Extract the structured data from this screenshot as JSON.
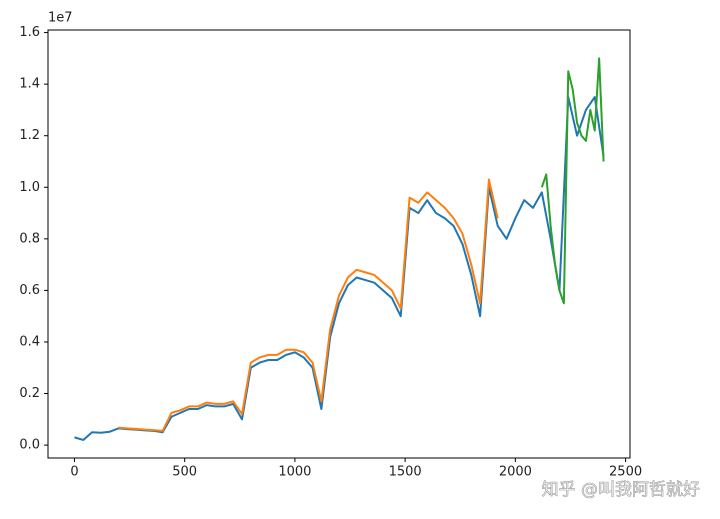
{
  "chart_data": {
    "type": "line",
    "y_offset_label": "1e7",
    "watermark": "知乎 @叫我阿哲就好",
    "xlim": [
      -120,
      2520
    ],
    "ylim": [
      -0.05,
      1.61
    ],
    "xticks": [
      0,
      500,
      1000,
      1500,
      2000,
      2500
    ],
    "yticks": [
      {
        "value": 0,
        "label": "0.0"
      },
      {
        "value": 0.2,
        "label": "0.2"
      },
      {
        "value": 0.4,
        "label": "0.4"
      },
      {
        "value": 0.6,
        "label": "0.6"
      },
      {
        "value": 0.8,
        "label": "0.8"
      },
      {
        "value": 1.0,
        "label": "1.0"
      },
      {
        "value": 1.2,
        "label": "1.2"
      },
      {
        "value": 1.4,
        "label": "1.4"
      },
      {
        "value": 1.6,
        "label": "1.6"
      }
    ],
    "series": [
      {
        "color": "#1f77b4",
        "x": [
          0,
          40,
          80,
          120,
          160,
          200,
          240,
          280,
          320,
          360,
          400,
          440,
          480,
          520,
          560,
          600,
          640,
          680,
          720,
          760,
          800,
          840,
          880,
          920,
          960,
          1000,
          1040,
          1080,
          1120,
          1160,
          1200,
          1240,
          1280,
          1320,
          1360,
          1400,
          1440,
          1480,
          1520,
          1560,
          1600,
          1640,
          1680,
          1720,
          1760,
          1800,
          1840,
          1880,
          1920,
          1960,
          2000,
          2040,
          2080,
          2120,
          2160,
          2200,
          2240,
          2280,
          2320,
          2360,
          2400
        ],
        "values": [
          0.03,
          0.02,
          0.05,
          0.048,
          0.052,
          0.065,
          0.062,
          0.06,
          0.057,
          0.055,
          0.05,
          0.11,
          0.125,
          0.14,
          0.14,
          0.155,
          0.15,
          0.15,
          0.16,
          0.1,
          0.3,
          0.32,
          0.33,
          0.33,
          0.35,
          0.36,
          0.34,
          0.3,
          0.14,
          0.42,
          0.55,
          0.62,
          0.65,
          0.64,
          0.63,
          0.6,
          0.57,
          0.5,
          0.92,
          0.9,
          0.95,
          0.9,
          0.88,
          0.85,
          0.78,
          0.66,
          0.5,
          1.0,
          0.85,
          0.8,
          0.88,
          0.95,
          0.92,
          0.98,
          0.8,
          0.6,
          1.35,
          1.2,
          1.3,
          1.35,
          1.12
        ]
      },
      {
        "color": "#ff7f0e",
        "x": [
          200,
          240,
          280,
          320,
          360,
          400,
          440,
          480,
          520,
          560,
          600,
          640,
          680,
          720,
          760,
          800,
          840,
          880,
          920,
          960,
          1000,
          1040,
          1080,
          1120,
          1160,
          1200,
          1240,
          1280,
          1320,
          1360,
          1400,
          1440,
          1480,
          1520,
          1560,
          1600,
          1640,
          1680,
          1720,
          1760,
          1800,
          1840,
          1880,
          1920
        ],
        "values": [
          0.068,
          0.065,
          0.063,
          0.06,
          0.058,
          0.055,
          0.125,
          0.135,
          0.15,
          0.15,
          0.165,
          0.16,
          0.16,
          0.17,
          0.12,
          0.32,
          0.34,
          0.35,
          0.35,
          0.37,
          0.37,
          0.36,
          0.32,
          0.17,
          0.45,
          0.58,
          0.65,
          0.68,
          0.67,
          0.66,
          0.63,
          0.6,
          0.53,
          0.96,
          0.94,
          0.98,
          0.95,
          0.92,
          0.88,
          0.82,
          0.7,
          0.55,
          1.03,
          0.88
        ]
      },
      {
        "color": "#2ca02c",
        "x": [
          2120,
          2140,
          2160,
          2180,
          2200,
          2220,
          2240,
          2260,
          2280,
          2300,
          2320,
          2340,
          2360,
          2380,
          2400
        ],
        "values": [
          1.0,
          1.05,
          0.85,
          0.7,
          0.6,
          0.55,
          1.45,
          1.38,
          1.25,
          1.2,
          1.18,
          1.3,
          1.22,
          1.5,
          1.1
        ]
      }
    ]
  }
}
